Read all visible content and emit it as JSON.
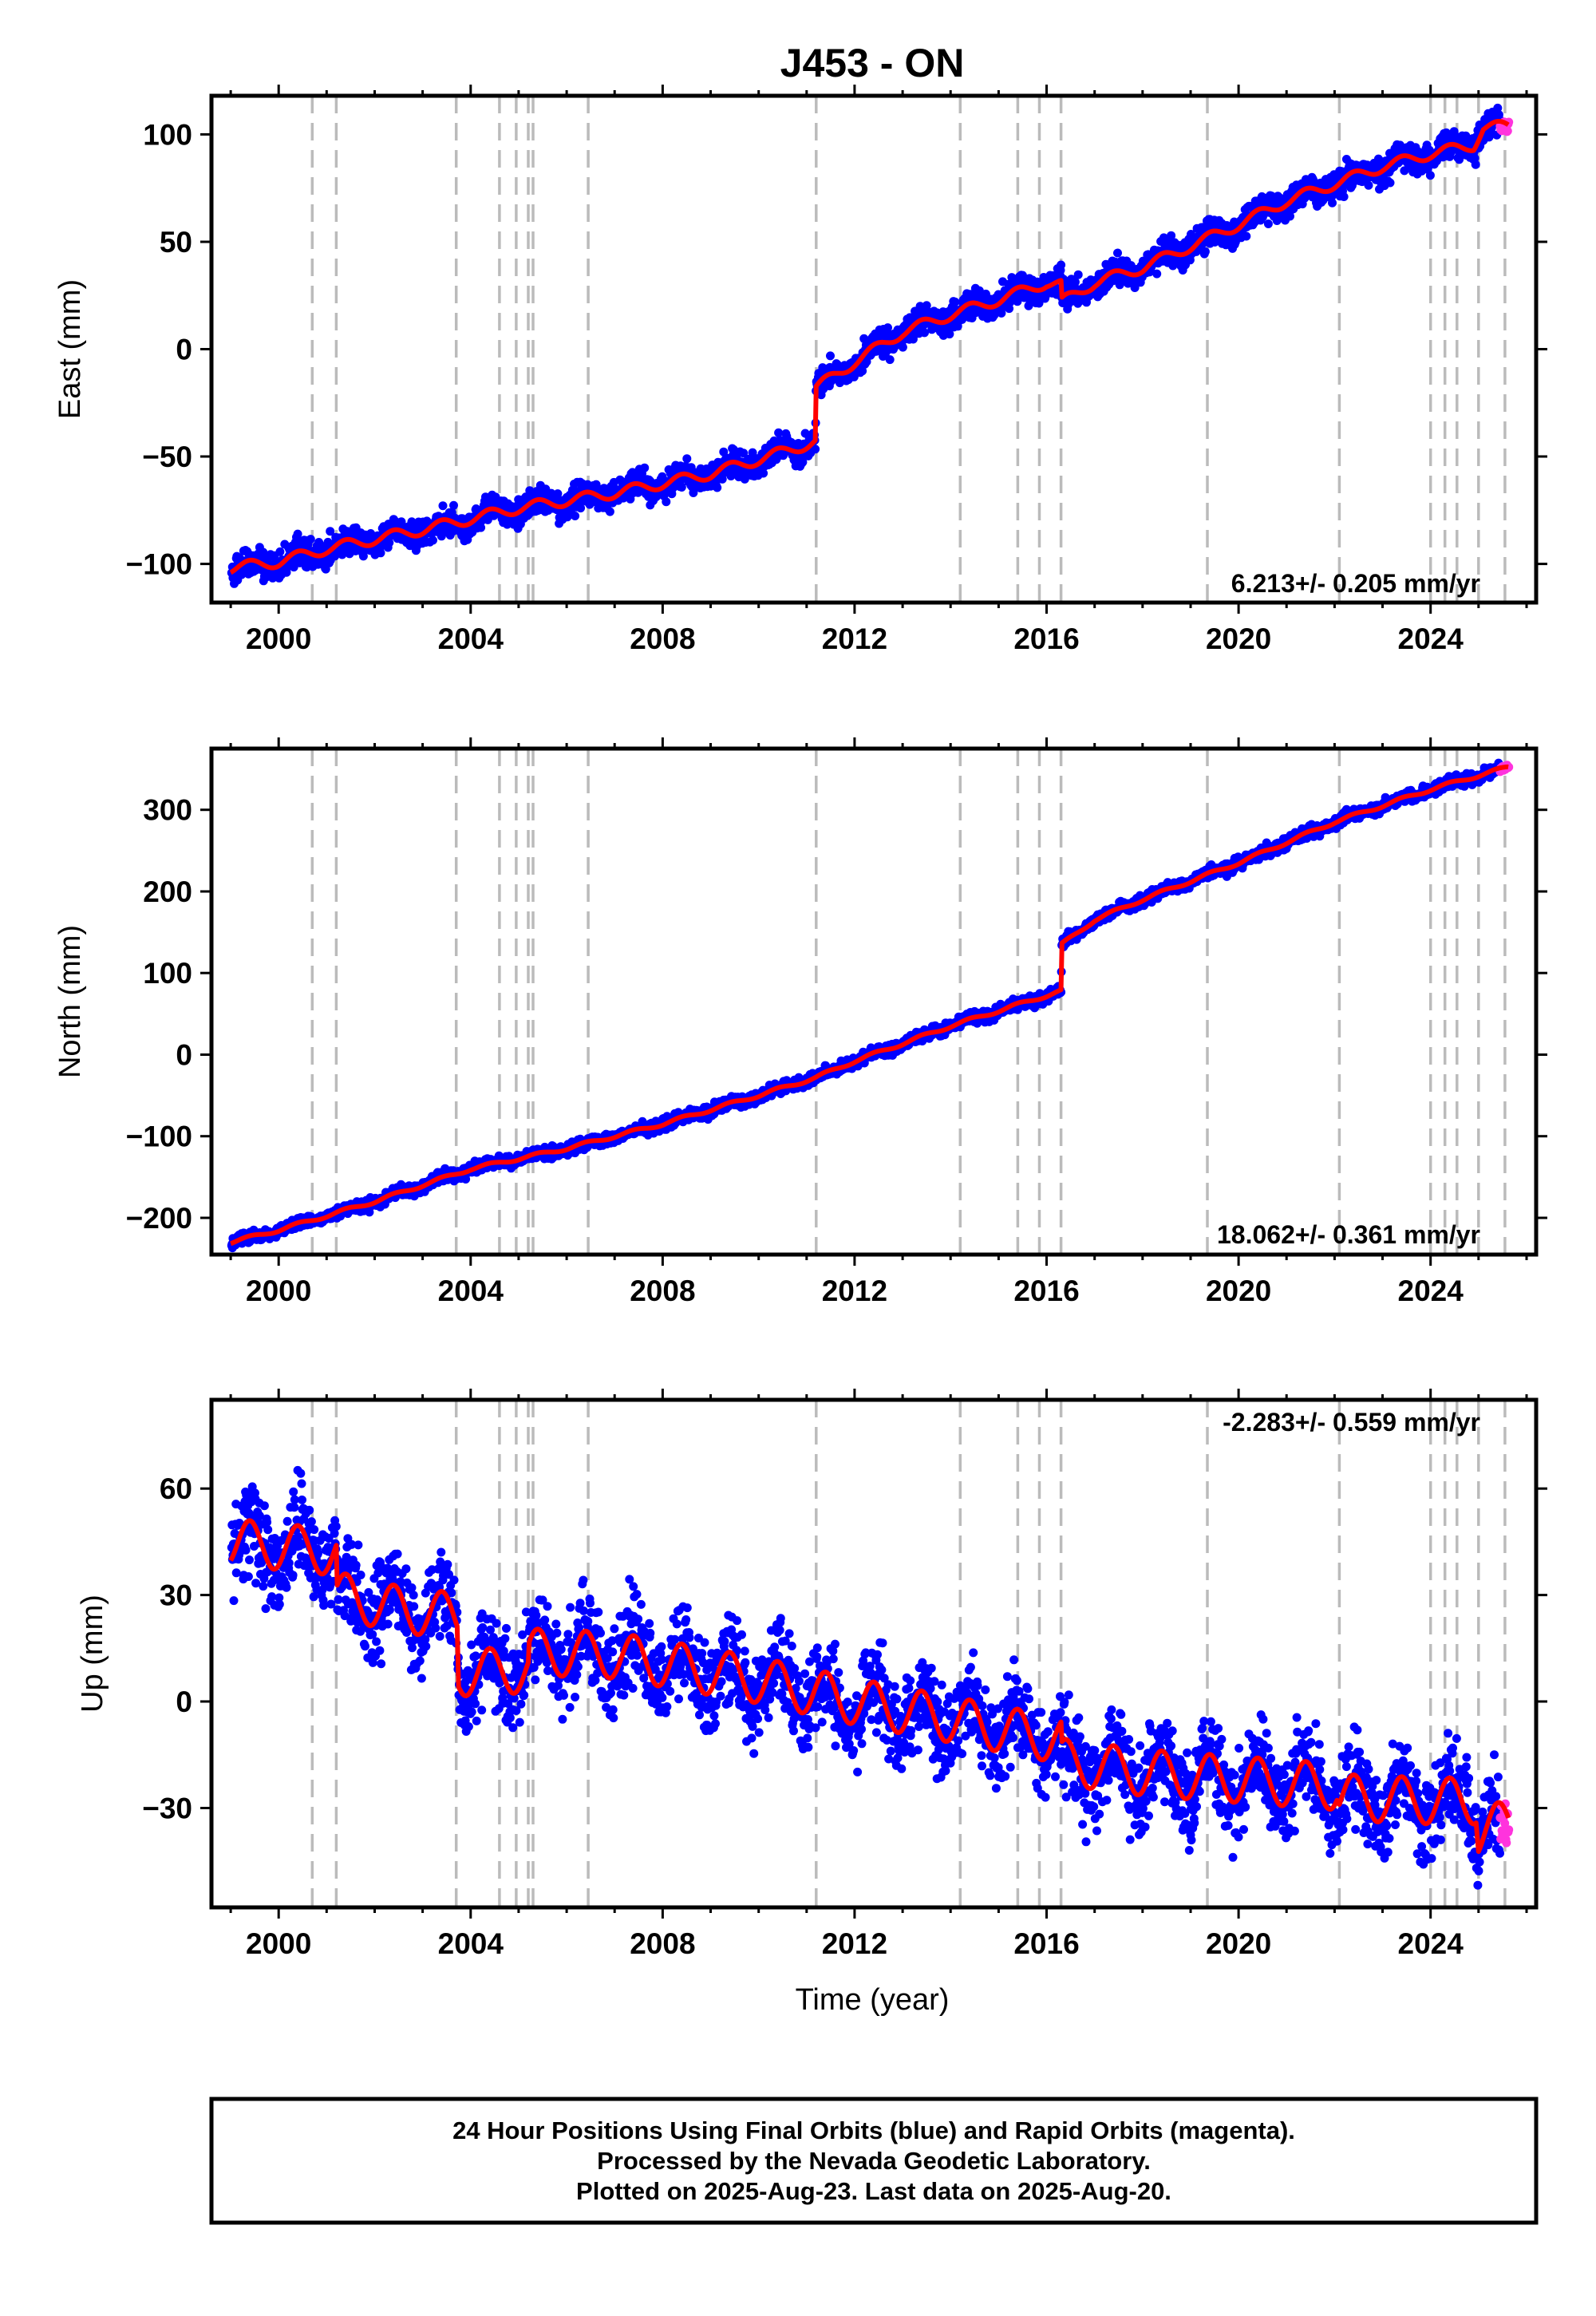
{
  "title": "J453 - ON",
  "colors": {
    "final": "#0000ff",
    "rapid": "#ff33dd",
    "model": "#ff0000",
    "events": "#bbbbbb"
  },
  "x_tick_labels": [
    "2000",
    "2004",
    "2008",
    "2012",
    "2016",
    "2020",
    "2024"
  ],
  "event_years": [
    2000.7,
    2001.2,
    2003.7,
    2004.6,
    2004.95,
    2005.2,
    2005.3,
    2006.45,
    2011.2,
    2014.2,
    2015.4,
    2015.85,
    2016.3,
    2019.35,
    2022.1,
    2024.0,
    2024.3,
    2024.55,
    2025.0,
    2025.55
  ],
  "chart_data": [
    {
      "type": "scatter",
      "ylabel": "East (mm)",
      "xlim": [
        1998.6,
        2026.2
      ],
      "ylim": [
        -118,
        118
      ],
      "yticks": [
        -100,
        -50,
        0,
        50,
        100
      ],
      "y_tick_labels": [
        "−100",
        "−50",
        "0",
        "50",
        "100"
      ],
      "rate_label": "6.213+/- 0.205 mm/yr",
      "model_points": [
        [
          1999.0,
          -102
        ],
        [
          2000.0,
          -99
        ],
        [
          2001.0,
          -93
        ],
        [
          2003.0,
          -84
        ],
        [
          2005.0,
          -74
        ],
        [
          2007.0,
          -67
        ],
        [
          2009.0,
          -58
        ],
        [
          2010.5,
          -48
        ],
        [
          2011.18,
          -43
        ],
        [
          2011.2,
          -18
        ],
        [
          2012.0,
          -6
        ],
        [
          2013.0,
          8
        ],
        [
          2014.0,
          16
        ],
        [
          2015.0,
          23
        ],
        [
          2016.0,
          31
        ],
        [
          2016.3,
          30
        ],
        [
          2016.32,
          22
        ],
        [
          2017.0,
          31
        ],
        [
          2018.0,
          38
        ],
        [
          2019.0,
          48
        ],
        [
          2020.0,
          58
        ],
        [
          2021.0,
          69
        ],
        [
          2022.0,
          77
        ],
        [
          2023.0,
          85
        ],
        [
          2024.0,
          91
        ],
        [
          2024.9,
          95
        ],
        [
          2025.1,
          103
        ],
        [
          2025.6,
          104
        ]
      ],
      "seasonal_amplitude": 2.5,
      "point_scatter": 3.2,
      "rapid_x_range": [
        2025.45,
        2025.64
      ]
    },
    {
      "type": "scatter",
      "ylabel": "North (mm)",
      "xlim": [
        1998.6,
        2026.2
      ],
      "ylim": [
        -245,
        375
      ],
      "yticks": [
        -200,
        -100,
        0,
        100,
        200,
        300
      ],
      "y_tick_labels": [
        "−200",
        "−100",
        "0",
        "100",
        "200",
        "300"
      ],
      "rate_label": "18.062+/- 0.361 mm/yr",
      "model_points": [
        [
          1999.0,
          -230
        ],
        [
          2000.0,
          -215
        ],
        [
          2002.0,
          -180
        ],
        [
          2004.0,
          -140
        ],
        [
          2006.0,
          -115
        ],
        [
          2008.0,
          -85
        ],
        [
          2010.0,
          -50
        ],
        [
          2011.2,
          -28
        ],
        [
          2012.0,
          -8
        ],
        [
          2014.0,
          35
        ],
        [
          2016.3,
          78
        ],
        [
          2016.32,
          135
        ],
        [
          2017.0,
          165
        ],
        [
          2018.0,
          190
        ],
        [
          2020.0,
          235
        ],
        [
          2022.0,
          285
        ],
        [
          2024.0,
          325
        ],
        [
          2025.0,
          342
        ],
        [
          2025.6,
          352
        ]
      ],
      "seasonal_amplitude": 2.0,
      "point_scatter": 3.5,
      "rapid_x_range": [
        2025.45,
        2025.64
      ]
    },
    {
      "type": "scatter",
      "ylabel": "Up (mm)",
      "xlabel": "Time (year)",
      "xlim": [
        1998.6,
        2026.2
      ],
      "ylim": [
        -58,
        85
      ],
      "yticks": [
        -30,
        0,
        30,
        60
      ],
      "y_tick_labels": [
        "−30",
        "0",
        "30",
        "60"
      ],
      "rate_label": "-2.283+/- 0.559 mm/yr",
      "model_points": [
        [
          1999.0,
          45
        ],
        [
          2001.2,
          42
        ],
        [
          2001.22,
          30
        ],
        [
          2002.5,
          26
        ],
        [
          2003.72,
          24
        ],
        [
          2003.75,
          8
        ],
        [
          2005.2,
          9
        ],
        [
          2005.22,
          14
        ],
        [
          2007.0,
          13
        ],
        [
          2010.0,
          6
        ],
        [
          2012.0,
          0
        ],
        [
          2014.0,
          -5
        ],
        [
          2016.3,
          -11
        ],
        [
          2016.32,
          -17
        ],
        [
          2018.0,
          -20
        ],
        [
          2020.0,
          -22
        ],
        [
          2022.05,
          -24
        ],
        [
          2022.1,
          -27
        ],
        [
          2024.0,
          -28
        ],
        [
          2024.95,
          -28
        ],
        [
          2025.0,
          -37
        ],
        [
          2025.6,
          -34
        ]
      ],
      "seasonal_amplitude": 6.5,
      "point_scatter": 6.0,
      "rapid_x_range": [
        2025.45,
        2025.64
      ]
    }
  ],
  "footnote": {
    "line1": "24 Hour Positions Using Final Orbits (blue) and Rapid Orbits (magenta).",
    "line2": "Processed by the Nevada Geodetic Laboratory.",
    "line3": "Plotted on 2025-Aug-23. Last data on 2025-Aug-20."
  }
}
